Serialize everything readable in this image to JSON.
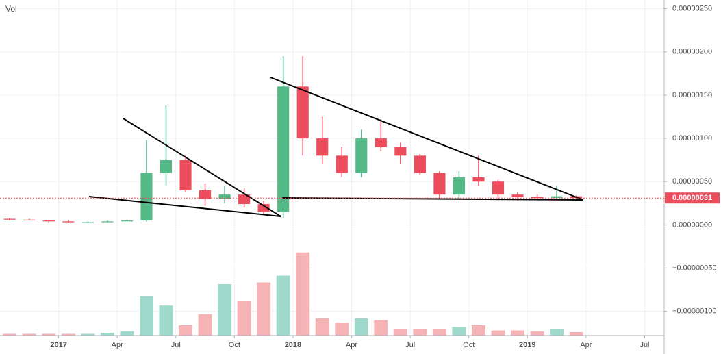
{
  "chart_data": {
    "type": "candlestick",
    "x": [
      "2016-10",
      "2016-11",
      "2016-12",
      "2017-01",
      "2017-02",
      "2017-03",
      "2017-04",
      "2017-05",
      "2017-06",
      "2017-07",
      "2017-08",
      "2017-09",
      "2017-10",
      "2017-11",
      "2017-12",
      "2018-01",
      "2018-02",
      "2018-03",
      "2018-04",
      "2018-05",
      "2018-06",
      "2018-07",
      "2018-08",
      "2018-09",
      "2018-10",
      "2018-11",
      "2018-12",
      "2019-01",
      "2019-02",
      "2019-03"
    ],
    "open": [
      7e-08,
      6e-08,
      5e-08,
      4e-08,
      3e-08,
      3e-08,
      4e-08,
      5e-08,
      6e-07,
      7.5e-07,
      4e-07,
      3e-07,
      3.5e-07,
      2.4e-07,
      1.5e-07,
      1.6e-06,
      1e-06,
      8e-07,
      6e-07,
      1e-06,
      9e-07,
      8e-07,
      6e-07,
      3.5e-07,
      5.5e-07,
      5e-07,
      3.5e-07,
      3.2e-07,
      3.1e-07,
      3.3e-07
    ],
    "high": [
      8e-08,
      7e-08,
      6e-08,
      5e-08,
      4e-08,
      5e-08,
      6e-08,
      9.8e-07,
      1.38e-06,
      8e-07,
      4.8e-07,
      4.5e-07,
      4.2e-07,
      2.8e-07,
      1.95e-06,
      1.95e-06,
      1.25e-06,
      9e-07,
      1.1e-06,
      1.22e-06,
      9.5e-07,
      8.2e-07,
      6.2e-07,
      6.2e-07,
      8e-07,
      5.2e-07,
      3.8e-07,
      3.5e-07,
      4.5e-07,
      3.4e-07
    ],
    "low": [
      5e-08,
      5e-08,
      3e-08,
      2e-08,
      2e-08,
      3e-08,
      4e-08,
      4e-08,
      4.5e-07,
      3.8e-07,
      2.2e-07,
      2.5e-07,
      2e-07,
      1.2e-07,
      8e-08,
      8e-07,
      7e-07,
      5.5e-07,
      5.5e-07,
      8.5e-07,
      7e-07,
      5.8e-07,
      3e-07,
      3e-07,
      4.5e-07,
      3e-07,
      2.8e-07,
      2.9e-07,
      2.9e-07,
      2.9e-07
    ],
    "close": [
      6e-08,
      5e-08,
      4e-08,
      3e-08,
      3e-08,
      4e-08,
      5e-08,
      6e-07,
      7.5e-07,
      4e-07,
      3e-07,
      3.5e-07,
      2.4e-07,
      1.5e-07,
      1.6e-06,
      1e-06,
      8e-07,
      6e-07,
      1e-06,
      9e-07,
      8e-07,
      6e-07,
      3.5e-07,
      5.5e-07,
      5e-07,
      3.5e-07,
      3.2e-07,
      3.1e-07,
      3.3e-07,
      3.1e-07
    ],
    "up_color": "#53b987",
    "down_color": "#eb4d5c",
    "volume": {
      "name": "Vol",
      "values": [
        2,
        2,
        2,
        2,
        2,
        3,
        5,
        46,
        35,
        12,
        25,
        60,
        40,
        62,
        70,
        97,
        20,
        15,
        20,
        18,
        8,
        8,
        8,
        10,
        12,
        6,
        6,
        5,
        8,
        4
      ],
      "vlim": [
        0,
        100
      ],
      "up_color": "#9fd9cc",
      "down_color": "#f5b3b6"
    },
    "xlim": [
      "2016-10",
      "2019-08"
    ],
    "xticks": [
      {
        "value": "2017-01",
        "label": "2017"
      },
      {
        "value": "2017-04",
        "label": "Apr"
      },
      {
        "value": "2017-07",
        "label": "Jul"
      },
      {
        "value": "2017-10",
        "label": "Oct"
      },
      {
        "value": "2018-01",
        "label": "2018"
      },
      {
        "value": "2018-04",
        "label": "Apr"
      },
      {
        "value": "2018-07",
        "label": "Jul"
      },
      {
        "value": "2018-10",
        "label": "Oct"
      },
      {
        "value": "2019-01",
        "label": "2019"
      },
      {
        "value": "2019-04",
        "label": "Apr"
      },
      {
        "value": "2019-07",
        "label": "Jul"
      }
    ],
    "ylim": [
      -1.28e-06,
      2.6e-06
    ],
    "yticks": [
      {
        "value": -1e-06,
        "label": "−0.00000100"
      },
      {
        "value": -5e-07,
        "label": "−0.00000050"
      },
      {
        "value": 0,
        "label": "0.00000000"
      },
      {
        "value": 5e-07,
        "label": "0.00000050"
      },
      {
        "value": 1e-06,
        "label": "0.00000100"
      },
      {
        "value": 1.5e-06,
        "label": "0.00000150"
      },
      {
        "value": 2e-06,
        "label": "0.00000200"
      },
      {
        "value": 2.5e-06,
        "label": "0.00000250"
      }
    ],
    "last_price": {
      "value": 3.1e-07,
      "label": "0.00000031"
    },
    "grid": true
  }
}
